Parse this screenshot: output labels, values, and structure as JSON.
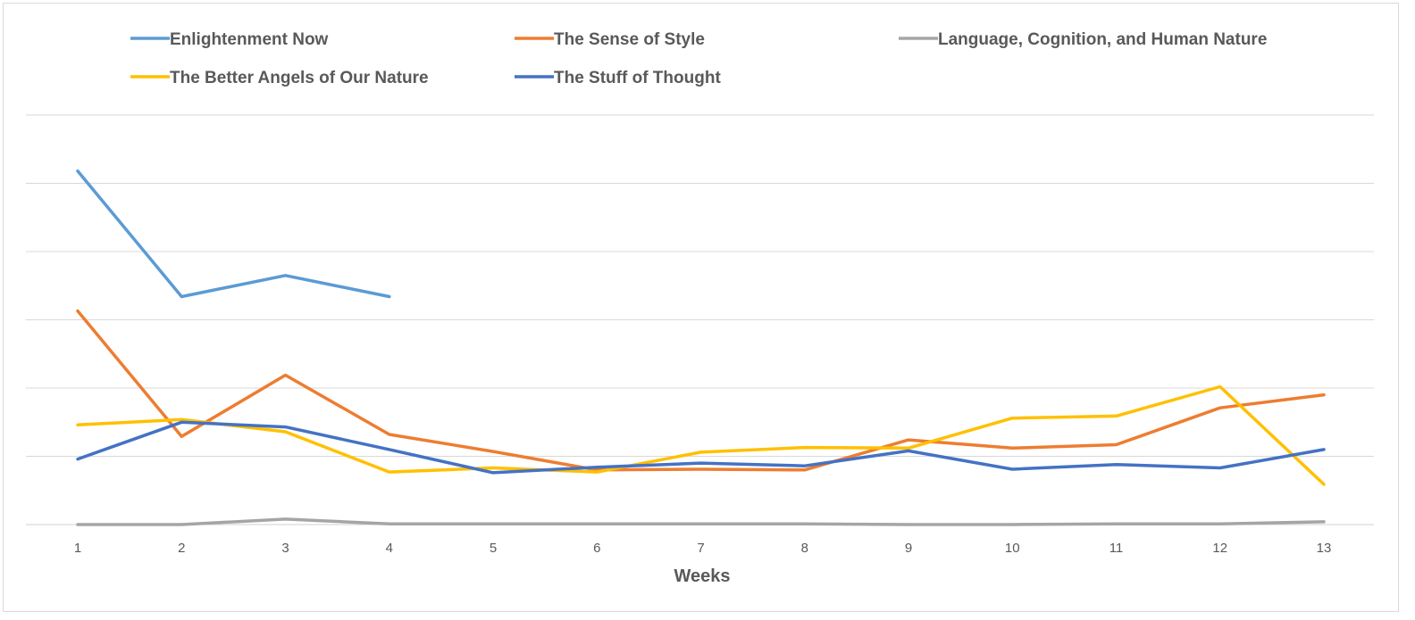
{
  "chart_data": {
    "type": "line",
    "title": "",
    "xlabel": "Weeks",
    "ylabel": "",
    "categories": [
      "1",
      "2",
      "3",
      "4",
      "5",
      "6",
      "7",
      "8",
      "9",
      "10",
      "11",
      "12",
      "13"
    ],
    "y_tick_labels_visible": false,
    "ylim": [
      0,
      6
    ],
    "y_gridline_values": [
      0,
      1,
      2,
      3,
      4,
      5,
      6
    ],
    "grid": "horizontal",
    "legend_position": "top",
    "series": [
      {
        "name": "Enlightenment Now",
        "color": "#5b9bd5",
        "values": [
          5.18,
          3.34,
          3.65,
          3.34,
          null,
          null,
          null,
          null,
          null,
          null,
          null,
          null,
          null
        ]
      },
      {
        "name": "The Sense of Style",
        "color": "#ed7d31",
        "values": [
          3.13,
          1.29,
          2.19,
          1.32,
          1.07,
          0.8,
          0.81,
          0.8,
          1.24,
          1.12,
          1.17,
          1.71,
          1.9
        ]
      },
      {
        "name": "Language, Cognition, and Human Nature",
        "color": "#a5a5a5",
        "values": [
          0.0,
          0.0,
          0.08,
          0.01,
          0.01,
          0.01,
          0.01,
          0.01,
          0.0,
          0.0,
          0.01,
          0.01,
          0.04
        ]
      },
      {
        "name": "The Better Angels of Our Nature",
        "color": "#ffc000",
        "values": [
          1.46,
          1.54,
          1.36,
          0.77,
          0.83,
          0.77,
          1.06,
          1.13,
          1.12,
          1.56,
          1.59,
          2.02,
          0.59
        ]
      },
      {
        "name": "The Stuff of Thought",
        "color": "#4472c4",
        "values": [
          0.96,
          1.5,
          1.43,
          1.1,
          0.76,
          0.84,
          0.9,
          0.86,
          1.08,
          0.81,
          0.88,
          0.83,
          1.1
        ]
      }
    ]
  }
}
